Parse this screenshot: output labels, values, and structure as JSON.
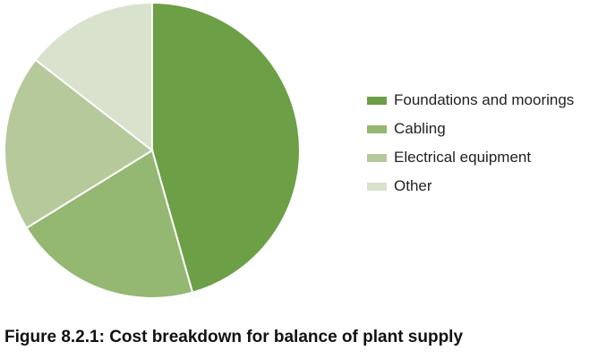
{
  "chart_data": {
    "type": "pie",
    "categories": [
      "Foundations and moorings",
      "Cabling",
      "Electrical equipment",
      "Other"
    ],
    "values": [
      45.6,
      20.6,
      19.3,
      14.5
    ],
    "colors": [
      "#6d9f46",
      "#94b772",
      "#b6c99a",
      "#d9e2cc"
    ],
    "start_angle": "12 o'clock",
    "direction": "clockwise",
    "legend_position": "right"
  },
  "caption": "Figure 8.2.1: Cost breakdown for balance of plant supply"
}
